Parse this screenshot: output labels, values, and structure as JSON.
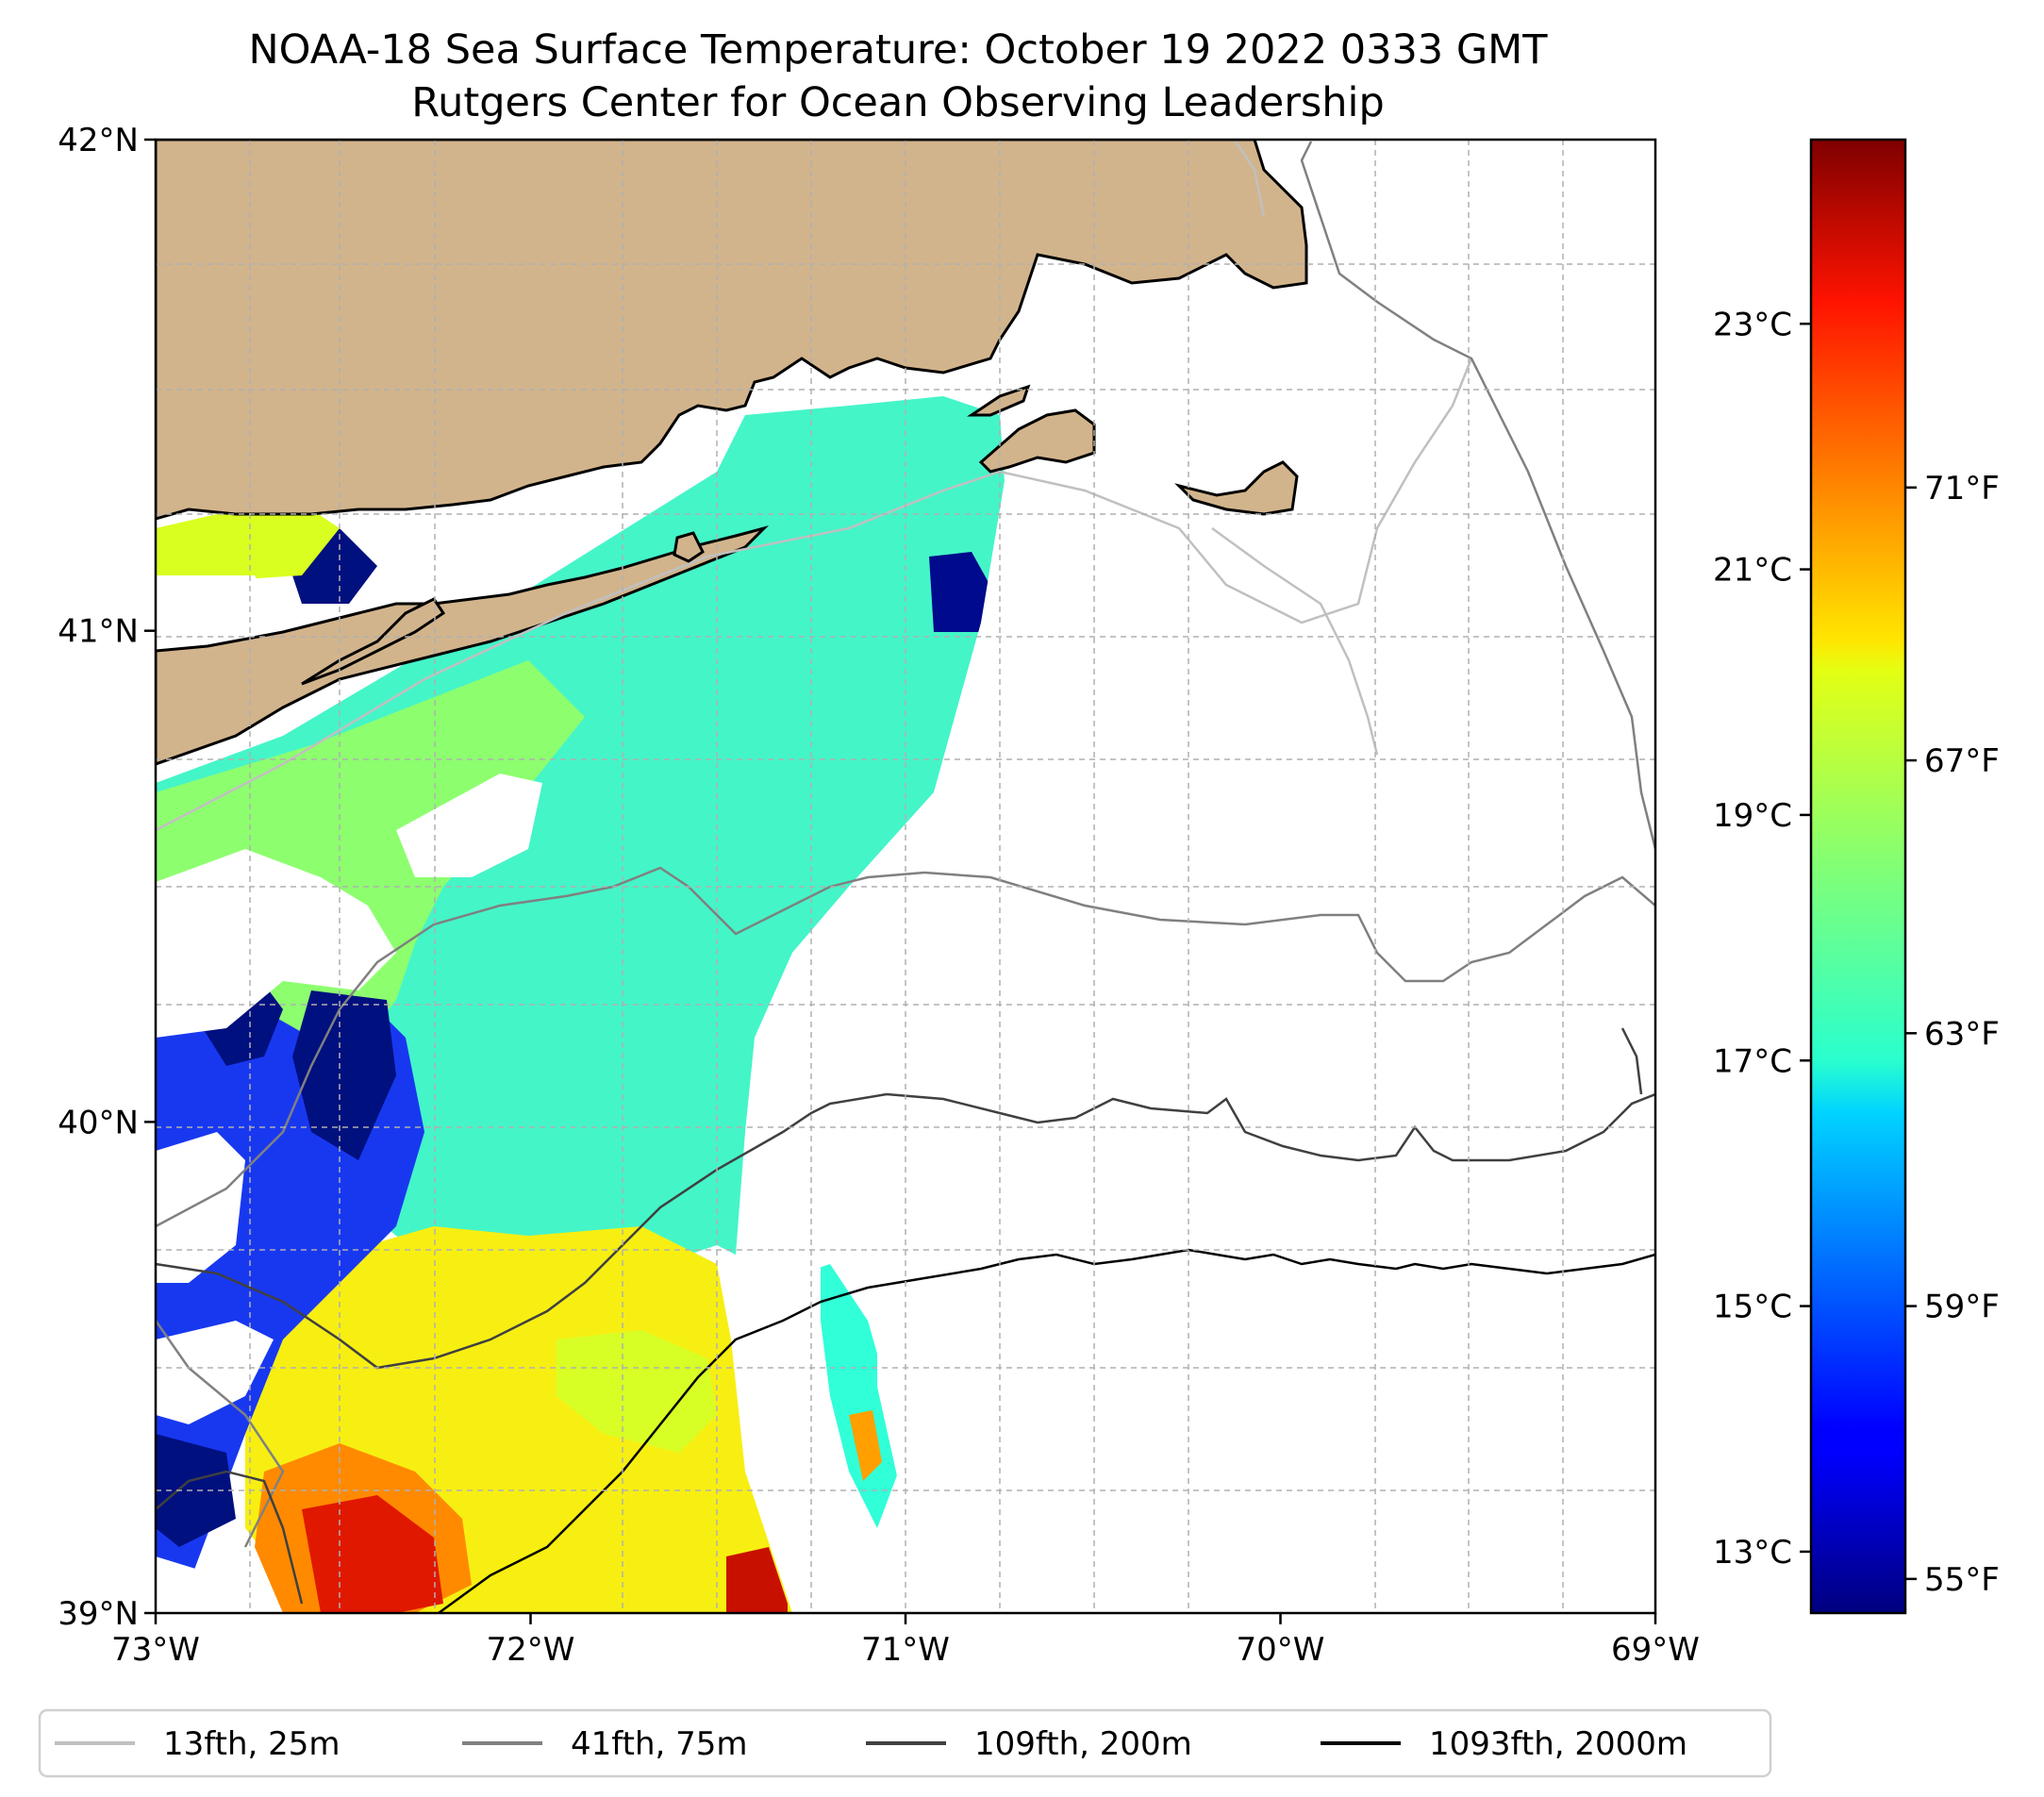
{
  "title": {
    "line1": "NOAA-18 Sea Surface Temperature: October 19 2022 0333 GMT",
    "line2": "Rutgers Center for Ocean Observing Leadership"
  },
  "axes": {
    "x_ticks": [
      {
        "value": -73,
        "label": "73°W"
      },
      {
        "value": -72,
        "label": "72°W"
      },
      {
        "value": -71,
        "label": "71°W"
      },
      {
        "value": -70,
        "label": "70°W"
      },
      {
        "value": -69,
        "label": "69°W"
      }
    ],
    "y_ticks": [
      {
        "value": 39,
        "label": "39°N"
      },
      {
        "value": 40,
        "label": "40°N"
      },
      {
        "value": 41,
        "label": "41°N"
      },
      {
        "value": 42,
        "label": "42°N"
      }
    ],
    "xlim": [
      -73,
      -69
    ],
    "ylim": [
      39,
      42
    ],
    "grid": true,
    "grid_style": "dashed"
  },
  "colorbar": {
    "colormap": "jet",
    "celsius_ticks": [
      {
        "value": 13,
        "label": "13°C"
      },
      {
        "value": 15,
        "label": "15°C"
      },
      {
        "value": 17,
        "label": "17°C"
      },
      {
        "value": 19,
        "label": "19°C"
      },
      {
        "value": 21,
        "label": "21°C"
      },
      {
        "value": 23,
        "label": "23°C"
      }
    ],
    "fahrenheit_ticks": [
      {
        "value": 55,
        "label": "55°F"
      },
      {
        "value": 59,
        "label": "59°F"
      },
      {
        "value": 63,
        "label": "63°F"
      },
      {
        "value": 67,
        "label": "67°F"
      },
      {
        "value": 71,
        "label": "71°F"
      }
    ],
    "range_celsius": [
      12.5,
      24.5
    ]
  },
  "legend": {
    "placement": "bottom",
    "items": [
      {
        "label": "13fth, 25m",
        "color": "#c0c0c0"
      },
      {
        "label": "41fth, 75m",
        "color": "#808080"
      },
      {
        "label": "109fth, 200m",
        "color": "#404040"
      },
      {
        "label": "1093fth, 2000m",
        "color": "#000000"
      }
    ]
  },
  "colors": {
    "land": "#d2b48c",
    "coastline": "#000000",
    "grid": "#b0b0b0"
  }
}
